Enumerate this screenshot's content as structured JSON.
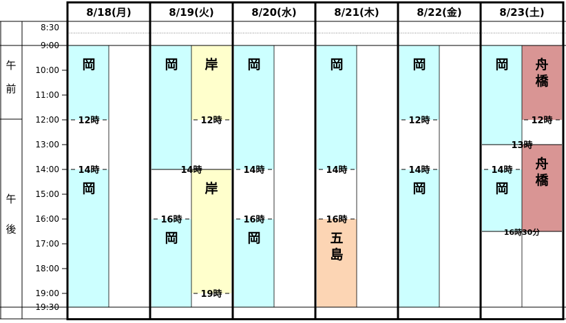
{
  "days": [
    {
      "label": "8/18(月)"
    },
    {
      "label": "8/19(火)"
    },
    {
      "label": "8/20(水)"
    },
    {
      "label": "8/21(木)"
    },
    {
      "label": "8/22(金)"
    },
    {
      "label": "8/23(土)"
    }
  ],
  "periods": [
    {
      "label": "午前",
      "start": 8.5,
      "end": 12
    },
    {
      "label": "午後",
      "start": 12,
      "end": 19.5
    }
  ],
  "time_labels": [
    {
      "label": "8:30",
      "t": 8.5
    },
    {
      "label": "9:00",
      "t": 9
    },
    {
      "label": "10:00",
      "t": 10
    },
    {
      "label": "11:00",
      "t": 11
    },
    {
      "label": "12:00",
      "t": 12
    },
    {
      "label": "13:00",
      "t": 13
    },
    {
      "label": "14:00",
      "t": 14
    },
    {
      "label": "15:00",
      "t": 15
    },
    {
      "label": "16:00",
      "t": 16
    },
    {
      "label": "17:00",
      "t": 17
    },
    {
      "label": "18:00",
      "t": 18
    },
    {
      "label": "19:00",
      "t": 19
    },
    {
      "label": "19:30",
      "t": 19.5
    }
  ],
  "colors": {
    "cyan": "#ccffff",
    "yellow": "#ffffcc",
    "peach": "#fcd5b4",
    "rose": "#d99594",
    "grid": "#000000"
  },
  "blocks": [
    {
      "day": 0,
      "sub": 0,
      "start": 9,
      "end": 12,
      "text": "岡",
      "color": "cyan"
    },
    {
      "day": 0,
      "sub": 0,
      "start": 14,
      "end": 19.5,
      "text": "岡",
      "color": "cyan"
    },
    {
      "day": 1,
      "sub": 0,
      "start": 9,
      "end": 14,
      "text": "岡",
      "color": "cyan"
    },
    {
      "day": 1,
      "sub": 1,
      "start": 9,
      "end": 12,
      "text": "岸",
      "color": "yellow"
    },
    {
      "day": 1,
      "sub": 0,
      "start": 16,
      "end": 19.5,
      "text": "岡",
      "color": "cyan"
    },
    {
      "day": 1,
      "sub": 1,
      "start": 14,
      "end": 19,
      "text": "岸",
      "color": "yellow"
    },
    {
      "day": 2,
      "sub": 0,
      "start": 9,
      "end": 14,
      "text": "岡",
      "color": "cyan"
    },
    {
      "day": 2,
      "sub": 0,
      "start": 16,
      "end": 19.5,
      "text": "岡",
      "color": "cyan"
    },
    {
      "day": 3,
      "sub": 0,
      "start": 9,
      "end": 14,
      "text": "岡",
      "color": "cyan"
    },
    {
      "day": 3,
      "sub": 0,
      "start": 16,
      "end": 19.5,
      "text": "五島",
      "color": "peach"
    },
    {
      "day": 4,
      "sub": 0,
      "start": 9,
      "end": 12,
      "text": "岡",
      "color": "cyan"
    },
    {
      "day": 4,
      "sub": 0,
      "start": 14,
      "end": 19.5,
      "text": "岡",
      "color": "cyan"
    },
    {
      "day": 5,
      "sub": 0,
      "start": 9,
      "end": 13,
      "text": "岡",
      "color": "cyan"
    },
    {
      "day": 5,
      "sub": 1,
      "start": 9,
      "end": 12,
      "text": "舟橋",
      "color": "rose"
    },
    {
      "day": 5,
      "sub": 0,
      "start": 14,
      "end": 16.5,
      "text": "岡",
      "color": "cyan"
    },
    {
      "day": 5,
      "sub": 1,
      "start": 13,
      "end": 16.5,
      "text": "舟橋",
      "color": "rose"
    }
  ],
  "markers": [
    {
      "day": 0,
      "sub": 0,
      "t": 12,
      "label": "12時"
    },
    {
      "day": 0,
      "sub": 0,
      "t": 14,
      "label": "14時"
    },
    {
      "day": 1,
      "sub": 1,
      "t": 12,
      "label": "12時"
    },
    {
      "day": 1,
      "sub": "center",
      "t": 14,
      "label": "14時"
    },
    {
      "day": 1,
      "sub": 0,
      "t": 16,
      "label": "16時"
    },
    {
      "day": 1,
      "sub": 1,
      "t": 19,
      "label": "19時"
    },
    {
      "day": 2,
      "sub": 0,
      "t": 14,
      "label": "14時"
    },
    {
      "day": 2,
      "sub": 0,
      "t": 16,
      "label": "16時"
    },
    {
      "day": 3,
      "sub": 0,
      "t": 14,
      "label": "14時"
    },
    {
      "day": 3,
      "sub": 0,
      "t": 16,
      "label": "16時"
    },
    {
      "day": 4,
      "sub": 0,
      "t": 12,
      "label": "12時"
    },
    {
      "day": 4,
      "sub": 0,
      "t": 14,
      "label": "14時"
    },
    {
      "day": 5,
      "sub": 1,
      "t": 12,
      "label": "12時"
    },
    {
      "day": 5,
      "sub": "center",
      "t": 13,
      "label": "13時"
    },
    {
      "day": 5,
      "sub": 0,
      "t": 14,
      "label": "14時"
    },
    {
      "day": 5,
      "sub": "center",
      "t": 16.5,
      "label": "16時30分",
      "small": true
    }
  ]
}
